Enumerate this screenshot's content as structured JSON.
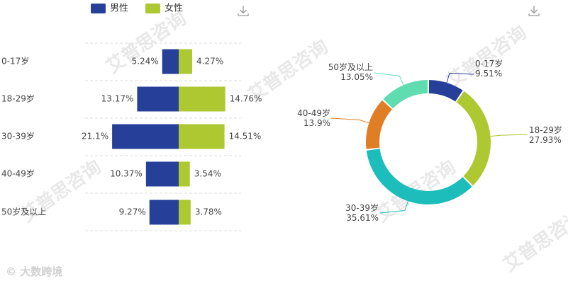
{
  "watermark": "艾普思咨询",
  "footer_logo": "大数跨境",
  "icons": {
    "download": "download-icon"
  },
  "colors": {
    "male": "#26409a",
    "female": "#aec832",
    "grid": "#dddddd"
  },
  "chart_data": [
    {
      "type": "bar",
      "orientation": "horizontal-diverging",
      "categories": [
        "0-17岁",
        "18-29岁",
        "30-39岁",
        "40-49岁",
        "50岁及以上"
      ],
      "series": [
        {
          "name": "男性",
          "color": "#26409a",
          "values": [
            5.24,
            13.17,
            21.1,
            10.37,
            9.27
          ],
          "labels": [
            "5.24%",
            "13.17%",
            "21.1%",
            "10.37%",
            "9.27%"
          ]
        },
        {
          "name": "女性",
          "color": "#aec832",
          "values": [
            4.27,
            14.76,
            14.51,
            3.54,
            3.78
          ],
          "labels": [
            "4.27%",
            "14.76%",
            "14.51%",
            "3.54%",
            "3.78%"
          ]
        }
      ],
      "legend_position": "top",
      "grid": true
    },
    {
      "type": "pie",
      "style": "donut",
      "categories": [
        "0-17岁",
        "18-29岁",
        "30-39岁",
        "40-49岁",
        "50岁及以上"
      ],
      "values": [
        9.51,
        27.93,
        35.61,
        13.9,
        13.05
      ],
      "labels": [
        "9.51%",
        "27.93%",
        "35.61%",
        "13.9%",
        "13.05%"
      ],
      "colors": [
        "#26409a",
        "#aec832",
        "#1cbdbb",
        "#e07e26",
        "#5fdcb0"
      ]
    }
  ]
}
